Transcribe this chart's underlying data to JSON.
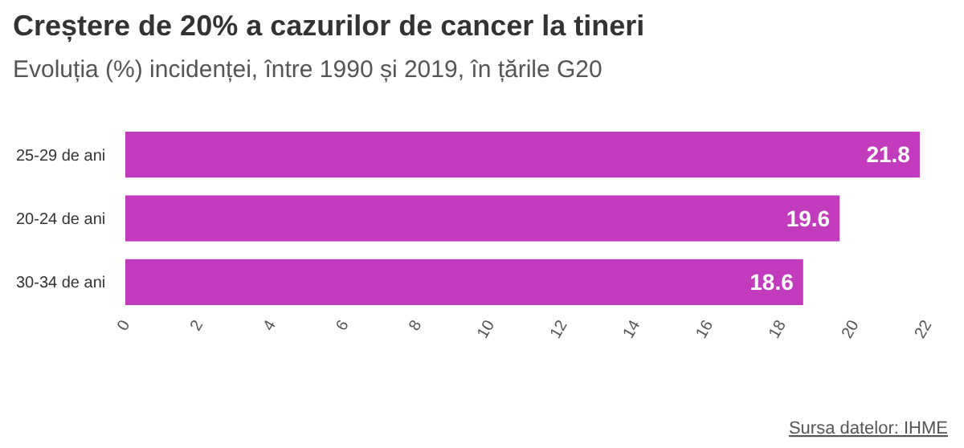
{
  "chart_data": {
    "type": "bar",
    "orientation": "horizontal",
    "title": "Creștere de 20% a cazurilor de cancer la tineri",
    "subtitle": "Evoluția (%) incidenței, între 1990 și 2019, în țările G20",
    "categories": [
      "25-29 de ani",
      "20-24 de ani",
      "30-34 de ani"
    ],
    "values": [
      21.8,
      19.6,
      18.6
    ],
    "color": "#c23bbd",
    "data_labels": true,
    "xlim": [
      0,
      22
    ],
    "xticks": [
      0,
      2,
      4,
      6,
      8,
      10,
      12,
      14,
      16,
      18,
      20,
      22
    ],
    "annotations": [
      "Sursa datelor: IHME"
    ]
  }
}
